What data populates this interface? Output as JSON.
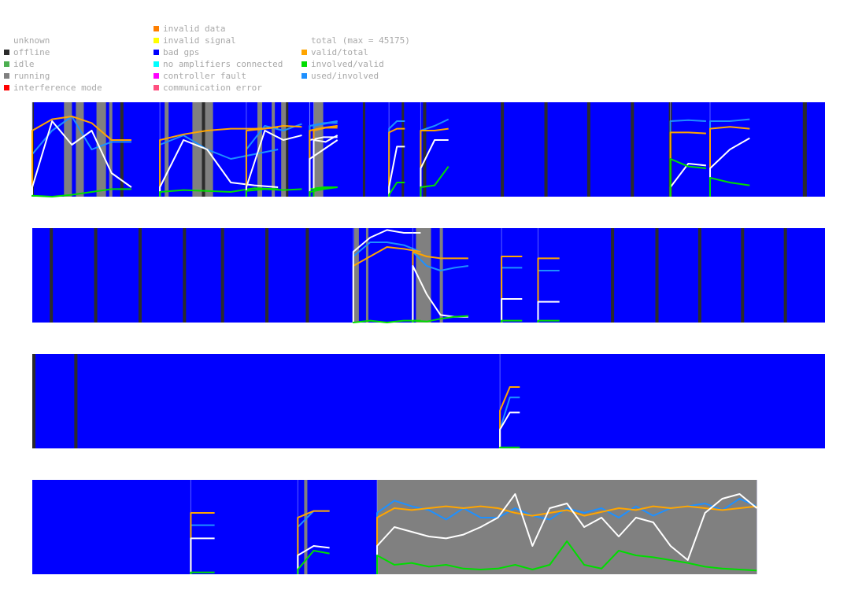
{
  "legend": {
    "status": [
      {
        "label": "unknown",
        "color": ""
      },
      {
        "label": "offline",
        "color": "#2b2b2b"
      },
      {
        "label": "idle",
        "color": "#4caf50"
      },
      {
        "label": "running",
        "color": "#808080"
      },
      {
        "label": "interference mode",
        "color": "#ff0000"
      }
    ],
    "faults": [
      {
        "label": "invalid data",
        "color": "#ff7f00"
      },
      {
        "label": "invalid signal",
        "color": "#ffff00"
      },
      {
        "label": "bad gps",
        "color": "#0000ff"
      },
      {
        "label": "no amplifiers connected",
        "color": "#00ffff"
      },
      {
        "label": "controller fault",
        "color": "#ff00ff"
      },
      {
        "label": "communication error",
        "color": "#ff4f7f"
      }
    ],
    "ratios": [
      {
        "label": "total (max = 45175)",
        "color": ""
      },
      {
        "label": "valid/total",
        "color": "#ffa500"
      },
      {
        "label": "involved/valid",
        "color": "#00dd00"
      },
      {
        "label": "used/involved",
        "color": "#1e90ff"
      }
    ]
  },
  "colors": {
    "bad_gps": "#0000ff",
    "running": "#808080",
    "offline": "#2b2b2b",
    "total": "#ffffff",
    "valid_total": "#ffa500",
    "involved_valid": "#00dd00",
    "used_involved": "#1e90ff"
  },
  "chart_data": {
    "type": "timeline",
    "rows": [
      {
        "duration": 1,
        "running": [
          [
            0.04,
            0.05
          ],
          [
            0.055,
            0.065
          ],
          [
            0.081,
            0.093
          ],
          [
            0.097,
            0.101
          ],
          [
            0.167,
            0.172
          ],
          [
            0.202,
            0.228
          ],
          [
            0.284,
            0.29
          ],
          [
            0.302,
            0.306
          ],
          [
            0.314,
            0.322
          ],
          [
            0.355,
            0.367
          ]
        ],
        "offline": [
          [
            0.0,
            0.002
          ],
          [
            0.111,
            0.115
          ],
          [
            0.214,
            0.218
          ],
          [
            0.32,
            0.323
          ],
          [
            0.417,
            0.42
          ],
          [
            0.466,
            0.469
          ],
          [
            0.493,
            0.497
          ],
          [
            0.591,
            0.595
          ],
          [
            0.646,
            0.65
          ],
          [
            0.7,
            0.704
          ],
          [
            0.755,
            0.759
          ],
          [
            0.803,
            0.807
          ],
          [
            0.972,
            0.977
          ]
        ],
        "sessions": [
          {
            "start": 0.0,
            "end": 0.125,
            "total": [
              0.1,
              0.8,
              0.55,
              0.7,
              0.25,
              0.1
            ],
            "valid": [
              0.7,
              0.82,
              0.85,
              0.78,
              0.6,
              0.6
            ],
            "involved": [
              0.01,
              0.0,
              0.02,
              0.05,
              0.08,
              0.08
            ],
            "used": [
              0.45,
              0.7,
              0.85,
              0.5,
              0.58,
              0.58
            ]
          },
          {
            "start": 0.161,
            "end": 0.31,
            "total": [
              0.1,
              0.6,
              0.5,
              0.15,
              0.12,
              0.1
            ],
            "valid": [
              0.6,
              0.66,
              0.7,
              0.72,
              0.72,
              0.73
            ],
            "involved": [
              0.05,
              0.07,
              0.06,
              0.05,
              0.09,
              0.08
            ],
            "used": [
              0.55,
              0.65,
              0.5,
              0.4,
              0.45,
              0.5
            ]
          },
          {
            "start": 0.27,
            "end": 0.34,
            "total": [
              0.1,
              0.7,
              0.6,
              0.65
            ],
            "valid": [
              0.7,
              0.72,
              0.75,
              0.74
            ],
            "involved": [
              0.06,
              0.08,
              0.07,
              0.08
            ],
            "used": [
              0.5,
              0.75,
              0.7,
              0.77
            ]
          },
          {
            "start": 0.35,
            "end": 0.385,
            "total": [
              0.6,
              0.63,
              0.63
            ],
            "valid": [
              0.7,
              0.73,
              0.73
            ],
            "involved": [
              0.08,
              0.1,
              0.1
            ],
            "used": [
              0.75,
              0.78,
              0.78
            ]
          },
          {
            "start": 0.355,
            "end": 0.385,
            "total": [
              0.6,
              0.58,
              0.65
            ],
            "valid": [
              0.7,
              0.73,
              0.75
            ],
            "involved": [
              0.08,
              0.09,
              0.1
            ],
            "used": [
              0.75,
              0.78,
              0.8
            ]
          },
          {
            "start": 0.35,
            "end": 0.385,
            "total": [
              0.4,
              0.5,
              0.6
            ],
            "valid": [
              0.7,
              0.73,
              0.75
            ],
            "involved": [
              0.05,
              0.08,
              0.1
            ],
            "used": [
              0.75,
              0.77,
              0.8
            ]
          },
          {
            "start": 0.45,
            "end": 0.47,
            "total": [
              0.1,
              0.53,
              0.53
            ],
            "valid": [
              0.68,
              0.72,
              0.72
            ],
            "involved": [
              0.02,
              0.15,
              0.15
            ],
            "used": [
              0.72,
              0.8,
              0.8
            ]
          },
          {
            "start": 0.49,
            "end": 0.525,
            "total": [
              0.3,
              0.6,
              0.6
            ],
            "valid": [
              0.7,
              0.7,
              0.72
            ],
            "involved": [
              0.1,
              0.12,
              0.32
            ],
            "used": [
              0.7,
              0.75,
              0.82
            ]
          },
          {
            "start": 0.805,
            "end": 0.85,
            "total": [
              0.1,
              0.35,
              0.33
            ],
            "valid": [
              0.68,
              0.68,
              0.67
            ],
            "involved": [
              0.4,
              0.32,
              0.3
            ],
            "used": [
              0.8,
              0.81,
              0.8
            ]
          },
          {
            "start": 0.855,
            "end": 0.905,
            "total": [
              0.3,
              0.5,
              0.62
            ],
            "valid": [
              0.72,
              0.74,
              0.72
            ],
            "involved": [
              0.2,
              0.15,
              0.12
            ],
            "used": [
              0.8,
              0.8,
              0.82
            ]
          }
        ]
      },
      {
        "duration": 1,
        "running": [
          [
            0.406,
            0.412
          ],
          [
            0.421,
            0.424
          ],
          [
            0.484,
            0.503
          ],
          [
            0.514,
            0.518
          ]
        ],
        "offline": [
          [
            0.022,
            0.026
          ],
          [
            0.078,
            0.082
          ],
          [
            0.134,
            0.138
          ],
          [
            0.19,
            0.194
          ],
          [
            0.238,
            0.242
          ],
          [
            0.294,
            0.298
          ],
          [
            0.345,
            0.349
          ],
          [
            0.73,
            0.734
          ],
          [
            0.786,
            0.79
          ],
          [
            0.84,
            0.844
          ],
          [
            0.894,
            0.898
          ],
          [
            0.948,
            0.952
          ]
        ],
        "sessions": [
          {
            "start": 0.405,
            "end": 0.49,
            "total": [
              0.75,
              0.9,
              0.98,
              0.95,
              0.95
            ],
            "valid": [
              0.6,
              0.7,
              0.8,
              0.78,
              0.75
            ],
            "involved": [
              0.0,
              0.02,
              0.0,
              0.02,
              0.02
            ],
            "used": [
              0.7,
              0.85,
              0.85,
              0.82,
              0.75
            ]
          },
          {
            "start": 0.48,
            "end": 0.55,
            "total": [
              0.6,
              0.3,
              0.08,
              0.06,
              0.06
            ],
            "valid": [
              0.75,
              0.7,
              0.68,
              0.68,
              0.68
            ],
            "involved": [
              0.02,
              0.01,
              0.04,
              0.06,
              0.07
            ],
            "used": [
              0.75,
              0.6,
              0.55,
              0.58,
              0.6
            ]
          },
          {
            "start": 0.592,
            "end": 0.618,
            "total": [
              0.25,
              0.25
            ],
            "valid": [
              0.7,
              0.7
            ],
            "involved": [
              0.02,
              0.02
            ],
            "used": [
              0.58,
              0.58
            ]
          },
          {
            "start": 0.638,
            "end": 0.665,
            "total": [
              0.22,
              0.22
            ],
            "valid": [
              0.68,
              0.68
            ],
            "involved": [
              0.02,
              0.02
            ],
            "used": [
              0.55,
              0.55
            ]
          }
        ]
      },
      {
        "duration": 1,
        "running": [],
        "offline": [
          [
            0.0,
            0.004
          ],
          [
            0.053,
            0.057
          ]
        ],
        "sessions": [
          {
            "start": 0.59,
            "end": 0.615,
            "total": [
              0.2,
              0.38,
              0.38
            ],
            "valid": [
              0.4,
              0.65,
              0.65
            ],
            "involved": [
              0.01,
              0.01,
              0.01
            ],
            "used": [
              0.2,
              0.54,
              0.54
            ]
          }
        ]
      },
      {
        "duration": 0.914,
        "running": [
          [
            0.343,
            0.347
          ],
          [
            0.435,
            0.914
          ]
        ],
        "offline": [],
        "sessions": [
          {
            "start": 0.2,
            "end": 0.23,
            "total": [
              0.38,
              0.38
            ],
            "valid": [
              0.65,
              0.65
            ],
            "involved": [
              0.02,
              0.02
            ],
            "used": [
              0.52,
              0.52
            ]
          },
          {
            "start": 0.335,
            "end": 0.375,
            "total": [
              0.2,
              0.3,
              0.28
            ],
            "valid": [
              0.6,
              0.67,
              0.67
            ],
            "involved": [
              0.05,
              0.25,
              0.22
            ],
            "used": [
              0.5,
              0.67,
              0.67
            ]
          },
          {
            "start": 0.435,
            "end": 0.914,
            "total": [
              0.3,
              0.5,
              0.45,
              0.4,
              0.38,
              0.42,
              0.5,
              0.6,
              0.85,
              0.3,
              0.7,
              0.75,
              0.5,
              0.6,
              0.4,
              0.6,
              0.55,
              0.3,
              0.15,
              0.65,
              0.8,
              0.85,
              0.7
            ],
            "valid": [
              0.6,
              0.7,
              0.68,
              0.7,
              0.72,
              0.7,
              0.72,
              0.7,
              0.65,
              0.62,
              0.65,
              0.68,
              0.62,
              0.66,
              0.7,
              0.68,
              0.72,
              0.7,
              0.72,
              0.7,
              0.68,
              0.7,
              0.72
            ],
            "involved": [
              0.2,
              0.1,
              0.12,
              0.08,
              0.1,
              0.06,
              0.05,
              0.06,
              0.1,
              0.05,
              0.1,
              0.35,
              0.1,
              0.06,
              0.25,
              0.2,
              0.18,
              0.15,
              0.12,
              0.08,
              0.06,
              0.05,
              0.04
            ],
            "used": [
              0.65,
              0.78,
              0.72,
              0.68,
              0.58,
              0.7,
              0.6,
              0.6,
              0.7,
              0.62,
              0.58,
              0.7,
              0.65,
              0.7,
              0.6,
              0.72,
              0.62,
              0.7,
              0.72,
              0.75,
              0.68,
              0.8,
              0.72
            ]
          }
        ]
      }
    ]
  }
}
